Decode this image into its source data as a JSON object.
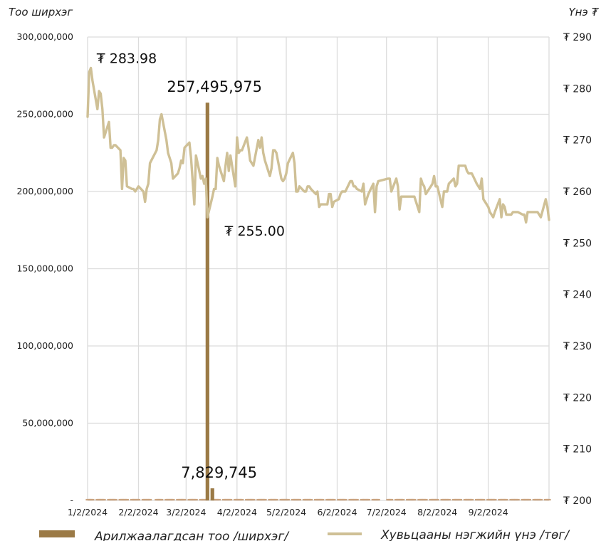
{
  "chart_data": {
    "type": "bar+line",
    "left_axis_title": "Тоо ширхэг",
    "right_axis_title": "Үнэ ₮",
    "y_left": {
      "min": 0,
      "max": 300000000,
      "ticks": [
        {
          "value": 0,
          "label": "-"
        },
        {
          "value": 50000000,
          "label": "50,000,000"
        },
        {
          "value": 100000000,
          "label": "100,000,000"
        },
        {
          "value": 150000000,
          "label": "150,000,000"
        },
        {
          "value": 200000000,
          "label": "200,000,000"
        },
        {
          "value": 250000000,
          "label": "250,000,000"
        },
        {
          "value": 300000000,
          "label": "300,000,000"
        }
      ]
    },
    "y_right": {
      "min": 200,
      "max": 290,
      "ticks": [
        {
          "value": 200,
          "label": "₮ 200"
        },
        {
          "value": 210,
          "label": "₮ 210"
        },
        {
          "value": 220,
          "label": "₮ 220"
        },
        {
          "value": 230,
          "label": "₮ 230"
        },
        {
          "value": 240,
          "label": "₮ 240"
        },
        {
          "value": 250,
          "label": "₮ 250"
        },
        {
          "value": 260,
          "label": "₮ 260"
        },
        {
          "value": 270,
          "label": "₮ 270"
        },
        {
          "value": 280,
          "label": "₮ 280"
        },
        {
          "value": 290,
          "label": "₮ 290"
        }
      ]
    },
    "x_axis": {
      "start": "2024-01-02",
      "end": "2024-10-09",
      "ticks": [
        "2024-01-02",
        "2024-02-02",
        "2024-03-02",
        "2024-04-02",
        "2024-05-02",
        "2024-06-02",
        "2024-07-02",
        "2024-08-02",
        "2024-09-02"
      ],
      "tick_labels": [
        "1/2/2024",
        "2/2/2024",
        "3/2/2024",
        "4/2/2024",
        "5/2/2024",
        "6/2/2024",
        "7/2/2024",
        "8/2/2024",
        "9/2/2024"
      ]
    },
    "series": [
      {
        "name": "Арилжаалагдсан тоо /ширхэг/",
        "kind": "bar",
        "axis": "left",
        "color": "#9B7A46",
        "points": [
          {
            "x": "2024-03-15",
            "y": 257495975
          },
          {
            "x": "2024-03-18",
            "y": 7829745
          }
        ],
        "baseline_dash_color": "#C9A27E"
      },
      {
        "name": "Хувьцааны нэгжийн үнэ /төг/",
        "kind": "line",
        "axis": "right",
        "color": "#CFC096",
        "points": [
          [
            "2024-01-02",
            274.5
          ],
          [
            "2024-01-03",
            283.2
          ],
          [
            "2024-01-04",
            283.98
          ],
          [
            "2024-01-05",
            281.5
          ],
          [
            "2024-01-08",
            276
          ],
          [
            "2024-01-09",
            279.5
          ],
          [
            "2024-01-10",
            279
          ],
          [
            "2024-01-11",
            276
          ],
          [
            "2024-01-12",
            270.5
          ],
          [
            "2024-01-15",
            273.5
          ],
          [
            "2024-01-16",
            268.5
          ],
          [
            "2024-01-17",
            268.5
          ],
          [
            "2024-01-18",
            269
          ],
          [
            "2024-01-19",
            269
          ],
          [
            "2024-01-22",
            268
          ],
          [
            "2024-01-23",
            260.5
          ],
          [
            "2024-01-24",
            266.5
          ],
          [
            "2024-01-25",
            266
          ],
          [
            "2024-01-26",
            261
          ],
          [
            "2024-01-29",
            260.5
          ],
          [
            "2024-01-30",
            260.5
          ],
          [
            "2024-01-31",
            260
          ],
          [
            "2024-02-01",
            260.5
          ],
          [
            "2024-02-02",
            261
          ],
          [
            "2024-02-05",
            260
          ],
          [
            "2024-02-06",
            258
          ],
          [
            "2024-02-07",
            260.5
          ],
          [
            "2024-02-08",
            261.5
          ],
          [
            "2024-02-09",
            265.5
          ],
          [
            "2024-02-13",
            268
          ],
          [
            "2024-02-14",
            270
          ],
          [
            "2024-02-15",
            274
          ],
          [
            "2024-02-16",
            275
          ],
          [
            "2024-02-19",
            270
          ],
          [
            "2024-02-20",
            267.5
          ],
          [
            "2024-02-21",
            266.5
          ],
          [
            "2024-02-22",
            265.5
          ],
          [
            "2024-02-23",
            262.5
          ],
          [
            "2024-02-26",
            263.5
          ],
          [
            "2024-02-27",
            264.5
          ],
          [
            "2024-02-28",
            266
          ],
          [
            "2024-02-29",
            265.5
          ],
          [
            "2024-03-01",
            268.5
          ],
          [
            "2024-03-04",
            269.5
          ],
          [
            "2024-03-05",
            266.5
          ],
          [
            "2024-03-06",
            262
          ],
          [
            "2024-03-07",
            257.5
          ],
          [
            "2024-03-08",
            267
          ],
          [
            "2024-03-11",
            262.5
          ],
          [
            "2024-03-12",
            263
          ],
          [
            "2024-03-13",
            261.5
          ],
          [
            "2024-03-14",
            262.5
          ],
          [
            "2024-03-15",
            255.0
          ],
          [
            "2024-03-18",
            259
          ],
          [
            "2024-03-19",
            260.5
          ],
          [
            "2024-03-20",
            260.5
          ],
          [
            "2024-03-21",
            266.5
          ],
          [
            "2024-03-22",
            265
          ],
          [
            "2024-03-25",
            262
          ],
          [
            "2024-03-26",
            265
          ],
          [
            "2024-03-27",
            267.5
          ],
          [
            "2024-03-28",
            264
          ],
          [
            "2024-03-29",
            267
          ],
          [
            "2024-04-01",
            261
          ],
          [
            "2024-04-02",
            270.5
          ],
          [
            "2024-04-03",
            267.5
          ],
          [
            "2024-04-04",
            268
          ],
          [
            "2024-04-05",
            268
          ],
          [
            "2024-04-08",
            270.5
          ],
          [
            "2024-04-09",
            268.5
          ],
          [
            "2024-04-10",
            266
          ],
          [
            "2024-04-11",
            265.5
          ],
          [
            "2024-04-12",
            265
          ],
          [
            "2024-04-15",
            270
          ],
          [
            "2024-04-16",
            268.5
          ],
          [
            "2024-04-17",
            270.5
          ],
          [
            "2024-04-18",
            267.5
          ],
          [
            "2024-04-19",
            266
          ],
          [
            "2024-04-22",
            263
          ],
          [
            "2024-04-23",
            264.5
          ],
          [
            "2024-04-24",
            268
          ],
          [
            "2024-04-25",
            268
          ],
          [
            "2024-04-26",
            267.5
          ],
          [
            "2024-04-29",
            262.5
          ],
          [
            "2024-04-30",
            262
          ],
          [
            "2024-05-01",
            262.5
          ],
          [
            "2024-05-02",
            263.5
          ],
          [
            "2024-05-03",
            265.5
          ],
          [
            "2024-05-06",
            267.5
          ],
          [
            "2024-05-07",
            265.5
          ],
          [
            "2024-05-08",
            260
          ],
          [
            "2024-05-09",
            260
          ],
          [
            "2024-05-10",
            261
          ],
          [
            "2024-05-13",
            260
          ],
          [
            "2024-05-14",
            260
          ],
          [
            "2024-05-15",
            261
          ],
          [
            "2024-05-16",
            261
          ],
          [
            "2024-05-17",
            260.5
          ],
          [
            "2024-05-20",
            259.5
          ],
          [
            "2024-05-21",
            260
          ],
          [
            "2024-05-22",
            257
          ],
          [
            "2024-05-23",
            257.5
          ],
          [
            "2024-05-24",
            257.5
          ],
          [
            "2024-05-27",
            257.5
          ],
          [
            "2024-05-28",
            259.5
          ],
          [
            "2024-05-29",
            259.5
          ],
          [
            "2024-05-30",
            257
          ],
          [
            "2024-05-31",
            258
          ],
          [
            "2024-06-03",
            258.5
          ],
          [
            "2024-06-04",
            259.5
          ],
          [
            "2024-06-05",
            260
          ],
          [
            "2024-06-06",
            260
          ],
          [
            "2024-06-07",
            260
          ],
          [
            "2024-06-10",
            262
          ],
          [
            "2024-06-11",
            262
          ],
          [
            "2024-06-12",
            261
          ],
          [
            "2024-06-13",
            261
          ],
          [
            "2024-06-14",
            260.5
          ],
          [
            "2024-06-17",
            260
          ],
          [
            "2024-06-18",
            261.5
          ],
          [
            "2024-06-19",
            257.5
          ],
          [
            "2024-06-20",
            258.5
          ],
          [
            "2024-06-21",
            259.5
          ],
          [
            "2024-06-24",
            261.5
          ],
          [
            "2024-06-25",
            256
          ],
          [
            "2024-06-26",
            261
          ],
          [
            "2024-06-27",
            262
          ],
          [
            "2024-07-03",
            262.5
          ],
          [
            "2024-07-04",
            262.5
          ],
          [
            "2024-07-05",
            260
          ],
          [
            "2024-07-08",
            262.5
          ],
          [
            "2024-07-09",
            261
          ],
          [
            "2024-07-10",
            256.5
          ],
          [
            "2024-07-11",
            259
          ],
          [
            "2024-07-12",
            259
          ],
          [
            "2024-07-15",
            259
          ],
          [
            "2024-07-16",
            259
          ],
          [
            "2024-07-17",
            259
          ],
          [
            "2024-07-18",
            259
          ],
          [
            "2024-07-19",
            259
          ],
          [
            "2024-07-22",
            256
          ],
          [
            "2024-07-23",
            262.5
          ],
          [
            "2024-07-24",
            261.5
          ],
          [
            "2024-07-25",
            261
          ],
          [
            "2024-07-26",
            259.5
          ],
          [
            "2024-07-29",
            261
          ],
          [
            "2024-07-30",
            261.5
          ],
          [
            "2024-07-31",
            263
          ],
          [
            "2024-08-01",
            261
          ],
          [
            "2024-08-02",
            261
          ],
          [
            "2024-08-05",
            257
          ],
          [
            "2024-08-06",
            260
          ],
          [
            "2024-08-07",
            260
          ],
          [
            "2024-08-08",
            260
          ],
          [
            "2024-08-09",
            261.5
          ],
          [
            "2024-08-12",
            262.5
          ],
          [
            "2024-08-13",
            261
          ],
          [
            "2024-08-14",
            261.5
          ],
          [
            "2024-08-15",
            265
          ],
          [
            "2024-08-16",
            265
          ],
          [
            "2024-08-19",
            265
          ],
          [
            "2024-08-20",
            264
          ],
          [
            "2024-08-21",
            263.5
          ],
          [
            "2024-08-22",
            263.5
          ],
          [
            "2024-08-23",
            263.5
          ],
          [
            "2024-08-26",
            261.5
          ],
          [
            "2024-08-27",
            261
          ],
          [
            "2024-08-28",
            260.5
          ],
          [
            "2024-08-29",
            262.5
          ],
          [
            "2024-08-30",
            258.5
          ],
          [
            "2024-09-02",
            257
          ],
          [
            "2024-09-03",
            256
          ],
          [
            "2024-09-04",
            255.5
          ],
          [
            "2024-09-05",
            255
          ],
          [
            "2024-09-06",
            256
          ],
          [
            "2024-09-09",
            258.5
          ],
          [
            "2024-09-10",
            255
          ],
          [
            "2024-09-11",
            257.5
          ],
          [
            "2024-09-12",
            257
          ],
          [
            "2024-09-13",
            255.5
          ],
          [
            "2024-09-16",
            255.5
          ],
          [
            "2024-09-17",
            256
          ],
          [
            "2024-09-18",
            256
          ],
          [
            "2024-09-19",
            256
          ],
          [
            "2024-09-20",
            256
          ],
          [
            "2024-09-23",
            255.5
          ],
          [
            "2024-09-24",
            255.5
          ],
          [
            "2024-09-25",
            254
          ],
          [
            "2024-09-26",
            256
          ],
          [
            "2024-09-27",
            256
          ],
          [
            "2024-09-30",
            256
          ],
          [
            "2024-10-01",
            256
          ],
          [
            "2024-10-02",
            256
          ],
          [
            "2024-10-03",
            255.5
          ],
          [
            "2024-10-04",
            255
          ],
          [
            "2024-10-07",
            258.5
          ],
          [
            "2024-10-08",
            257
          ],
          [
            "2024-10-09",
            254.5
          ]
        ]
      }
    ],
    "annotations": [
      {
        "text": "₮ 283.98",
        "series": "price",
        "x": "2024-01-04",
        "value": 283.98
      },
      {
        "text": "257,495,975",
        "series": "volume",
        "x": "2024-03-15",
        "value": 257495975
      },
      {
        "text": "₮ 255.00",
        "series": "price",
        "x": "2024-03-15",
        "value": 255.0
      },
      {
        "text": "7,829,745",
        "series": "volume",
        "x": "2024-03-18",
        "value": 7829745
      }
    ],
    "grid": true,
    "legend_position": "bottom"
  }
}
